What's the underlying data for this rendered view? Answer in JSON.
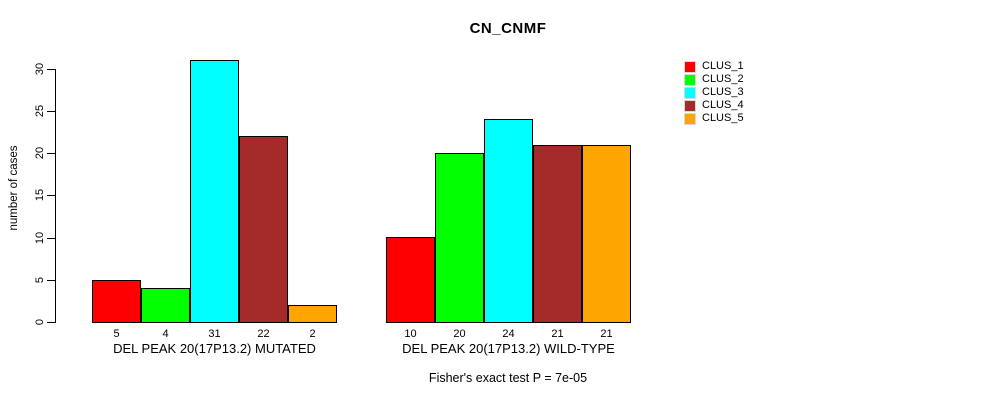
{
  "chart_data": {
    "type": "bar",
    "title": "CN_CNMF",
    "ylabel": "number of cases",
    "xlabel": "",
    "ylim": [
      0,
      31
    ],
    "yticks": [
      0,
      5,
      10,
      15,
      20,
      25,
      30
    ],
    "grid": false,
    "legend_position": "right",
    "categories": [
      "DEL PEAK 20(17P13.2) MUTATED",
      "DEL PEAK 20(17P13.2) WILD-TYPE"
    ],
    "series": [
      {
        "name": "CLUS_1",
        "color": "#FF0000",
        "values": [
          5,
          10
        ]
      },
      {
        "name": "CLUS_2",
        "color": "#00FF00",
        "values": [
          4,
          20
        ]
      },
      {
        "name": "CLUS_3",
        "color": "#00FFFF",
        "values": [
          31,
          24
        ]
      },
      {
        "name": "CLUS_4",
        "color": "#A52A2A",
        "values": [
          22,
          21
        ]
      },
      {
        "name": "CLUS_5",
        "color": "#FFA500",
        "values": [
          2,
          21
        ]
      }
    ],
    "bar_value_labels": [
      [
        "5",
        "4",
        "31",
        "22",
        "2"
      ],
      [
        "10",
        "20",
        "24",
        "21",
        "21"
      ]
    ],
    "annotation": "Fisher's exact test P = 7e-05"
  },
  "legend": {
    "items": [
      {
        "label": "CLUS_1",
        "color": "#FF0000"
      },
      {
        "label": "CLUS_2",
        "color": "#00FF00"
      },
      {
        "label": "CLUS_3",
        "color": "#00FFFF"
      },
      {
        "label": "CLUS_4",
        "color": "#A52A2A"
      },
      {
        "label": "CLUS_5",
        "color": "#FFA500"
      }
    ]
  },
  "colors": {
    "axis": "#000000",
    "background": "#ffffff"
  }
}
